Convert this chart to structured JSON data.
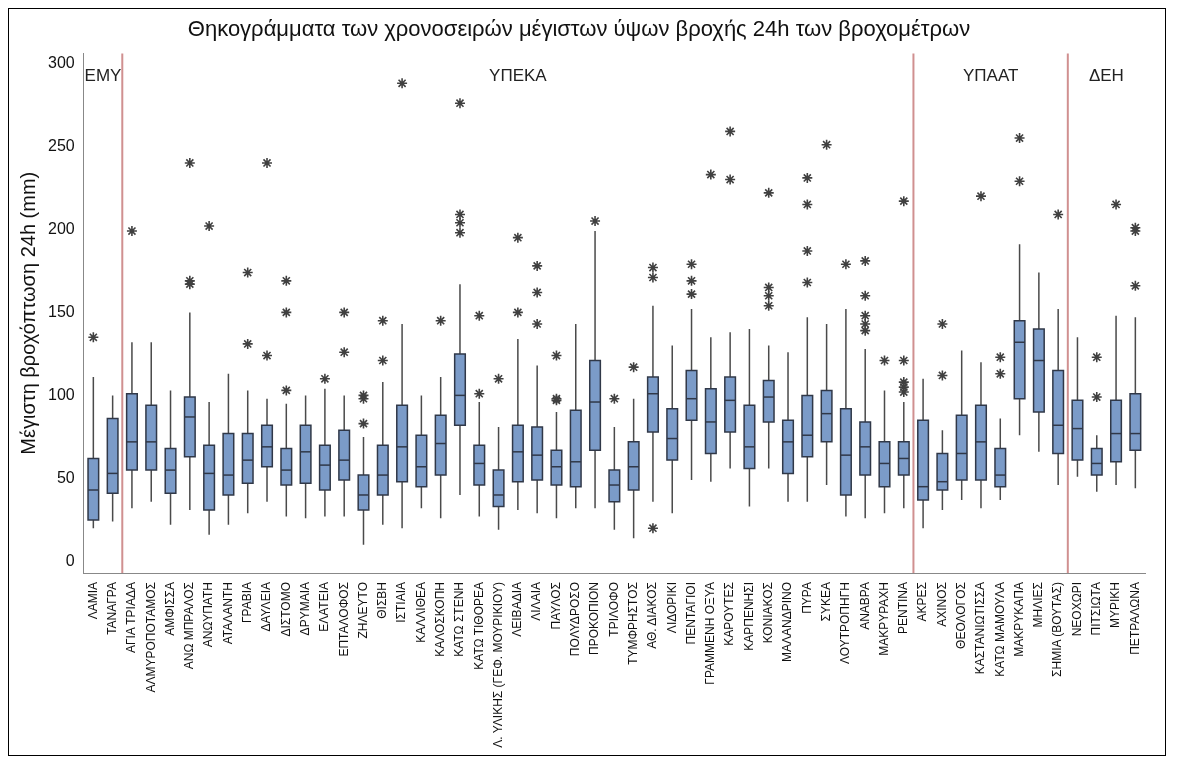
{
  "chart_data": {
    "type": "box",
    "title": "Θηκογράμματα των χρονοσειρών μέγιστων ύψων βροχής 24h των βροχομέτρων",
    "ylabel": "Μέγιστη βροχόπτωση 24h (mm)",
    "categories": [
      "ΛΑΜΙΑ",
      "ΤΑΝΑΓΡΑ",
      "ΑΓΙΑ ΤΡΙΑΔΑ",
      "ΑΛΜΥΡΟΠΟΤΑΜΟΣ",
      "ΑΜΦΙΣΣΑ",
      "ΑΝΩ ΜΠΡΑΛΟΣ",
      "ΑΝΩΥΠΑΤΗ",
      "ΑΤΑΛΑΝΤΗ",
      "ΓΡΑΒΙΑ",
      "ΔΑΥΛΕΙΑ",
      "ΔΙΣΤΟΜΟ",
      "ΔΡΥΜΑΙΑ",
      "ΕΛΑΤΕΙΑ",
      "ΕΠΤΑΛΟΦΟΣ",
      "ΖΗΛΕΥΤΟ",
      "ΘΙΣΒΗ",
      "ΙΣΤΙΑΙΑ",
      "ΚΑΛΛΙΘΕΑ",
      "ΚΑΛΟΣΚΟΠΗ",
      "ΚΑΤΩ ΣΤΕΝΗ",
      "ΚΑΤΩ ΤΙΘΟΡΕΑ",
      "Λ. ΥΛΙΚΗΣ (ΓΕΦ. ΜΟΥΡΙΚΙΟΥ)",
      "ΛΕΙΒΑΔΙΑ",
      "ΛΙΛΑΙΑ",
      "ΠΑΥΛΟΣ",
      "ΠΟΛΥΔΡΟΣΟ",
      "ΠΡΟΚΟΠΙΟΝ",
      "ΤΡΙΛΟΦΟ",
      "ΤΥΜΦΡΗΣΤΟΣ",
      "ΑΘ. ΔΙΑΚΟΣ",
      "ΛΙΔΟΡΙΚΙ",
      "ΠΕΝΤΑΓΙΟΙ",
      "ΓΡΑΜΜΕΝΗ ΟΞΥΑ",
      "ΚΑΡΟΥΤΕΣ",
      "ΚΑΡΠΕΝΗΣΙ",
      "ΚΟΝΙΑΚΟΣ",
      "ΜΑΛΑΝΔΡΙΝΟ",
      "ΠΥΡΑ",
      "ΣΥΚΕΑ",
      "ΛΟΥΤΡΟΠΗΓΗ",
      "ΑΝΑΒΡΑ",
      "ΜΑΚΡΥΡΑΧΗ",
      "ΡΕΝΤΙΝΑ",
      "ΑΚΡΕΣ",
      "ΑΧΙΝΟΣ",
      "ΘΕΟΛΟΓΟΣ",
      "ΚΑΣΤΑΝΙΩΤΙΣΣΑ",
      "ΚΑΤΩ ΜΑΜΟΥΛΑ",
      "ΜΑΚΡΥΚΑΠΑ",
      "ΜΗΛΙΕΣ",
      "ΣΗΜΙΑ (ΒΟΥΤΑΣ)",
      "ΝΕΟΧΩΡΙ",
      "ΠΙΤΣΙΩΤΑ",
      "ΜΥΡΙΚΗ",
      "ΠΕΤΡΑΛΩΝΑ"
    ],
    "color": "#7b9bc8",
    "marker": "star",
    "boxes": [
      {
        "low": 20,
        "q1": 25,
        "median": 43,
        "q3": 62,
        "high": 111,
        "outliers": [
          135
        ]
      },
      {
        "low": 24,
        "q1": 41,
        "median": 53,
        "q3": 86,
        "high": 100
      },
      {
        "low": 32,
        "q1": 55,
        "median": 72,
        "q3": 101,
        "high": 132,
        "outliers": [
          199
        ]
      },
      {
        "low": 36,
        "q1": 55,
        "median": 72,
        "q3": 94,
        "high": 132
      },
      {
        "low": 22,
        "q1": 41,
        "median": 55,
        "q3": 68,
        "high": 103
      },
      {
        "low": 31,
        "q1": 63,
        "median": 87,
        "q3": 99,
        "high": 150,
        "outliers": [
          240,
          169,
          167
        ]
      },
      {
        "low": 16,
        "q1": 31,
        "median": 53,
        "q3": 70,
        "high": 96,
        "outliers": [
          202
        ]
      },
      {
        "low": 22,
        "q1": 40,
        "median": 52,
        "q3": 77,
        "high": 113
      },
      {
        "low": 29,
        "q1": 47,
        "median": 61,
        "q3": 77,
        "high": 103,
        "outliers": [
          174,
          131
        ]
      },
      {
        "low": 36,
        "q1": 57,
        "median": 69,
        "q3": 82,
        "high": 98,
        "outliers": [
          240,
          124
        ]
      },
      {
        "low": 27,
        "q1": 46,
        "median": 55,
        "q3": 68,
        "high": 95,
        "outliers": [
          169,
          150,
          103
        ]
      },
      {
        "low": 26,
        "q1": 47,
        "median": 66,
        "q3": 82,
        "high": 100
      },
      {
        "low": 27,
        "q1": 43,
        "median": 58,
        "q3": 70,
        "high": 104,
        "outliers": [
          110
        ]
      },
      {
        "low": 27,
        "q1": 49,
        "median": 61,
        "q3": 79,
        "high": 100,
        "outliers": [
          150,
          126
        ]
      },
      {
        "low": 10,
        "q1": 31,
        "median": 40,
        "q3": 52,
        "high": 75,
        "outliers": [
          100,
          98,
          83
        ]
      },
      {
        "low": 22,
        "q1": 40,
        "median": 52,
        "q3": 70,
        "high": 108,
        "outliers": [
          145,
          121
        ]
      },
      {
        "low": 20,
        "q1": 48,
        "median": 69,
        "q3": 94,
        "high": 143,
        "outliers": [
          288
        ]
      },
      {
        "low": 32,
        "q1": 45,
        "median": 57,
        "q3": 76,
        "high": 100
      },
      {
        "low": 26,
        "q1": 52,
        "median": 71,
        "q3": 88,
        "high": 111,
        "outliers": [
          145
        ]
      },
      {
        "low": 40,
        "q1": 82,
        "median": 100,
        "q3": 125,
        "high": 167,
        "outliers": [
          276,
          209,
          204,
          198
        ]
      },
      {
        "low": 27,
        "q1": 46,
        "median": 59,
        "q3": 70,
        "high": 96,
        "outliers": [
          148,
          101
        ]
      },
      {
        "low": 19,
        "q1": 33,
        "median": 40,
        "q3": 55,
        "high": 81,
        "outliers": [
          110
        ]
      },
      {
        "low": 31,
        "q1": 48,
        "median": 66,
        "q3": 82,
        "high": 134,
        "outliers": [
          195,
          150
        ]
      },
      {
        "low": 29,
        "q1": 49,
        "median": 64,
        "q3": 81,
        "high": 118,
        "outliers": [
          178,
          162,
          143
        ]
      },
      {
        "low": 26,
        "q1": 46,
        "median": 57,
        "q3": 67,
        "high": 90,
        "outliers": [
          124,
          98,
          97
        ]
      },
      {
        "low": 32,
        "q1": 45,
        "median": 60,
        "q3": 91,
        "high": 143
      },
      {
        "low": 32,
        "q1": 67,
        "median": 96,
        "q3": 121,
        "high": 199,
        "outliers": [
          205
        ]
      },
      {
        "low": 19,
        "q1": 36,
        "median": 46,
        "q3": 55,
        "high": 81,
        "outliers": [
          98
        ]
      },
      {
        "low": 14,
        "q1": 43,
        "median": 57,
        "q3": 72,
        "high": 98,
        "outliers": [
          117
        ]
      },
      {
        "low": 36,
        "q1": 78,
        "median": 101,
        "q3": 111,
        "high": 154,
        "outliers": [
          177,
          171,
          20
        ]
      },
      {
        "low": 29,
        "q1": 61,
        "median": 74,
        "q3": 92,
        "high": 130
      },
      {
        "low": 49,
        "q1": 85,
        "median": 98,
        "q3": 115,
        "high": 152,
        "outliers": [
          179,
          169,
          161
        ]
      },
      {
        "low": 48,
        "q1": 65,
        "median": 84,
        "q3": 104,
        "high": 135,
        "outliers": [
          233
        ]
      },
      {
        "low": 56,
        "q1": 78,
        "median": 97,
        "q3": 111,
        "high": 138,
        "outliers": [
          259,
          230
        ]
      },
      {
        "low": 33,
        "q1": 56,
        "median": 69,
        "q3": 94,
        "high": 140
      },
      {
        "low": 56,
        "q1": 84,
        "median": 99,
        "q3": 109,
        "high": 130,
        "outliers": [
          222,
          165,
          160,
          154
        ]
      },
      {
        "low": 36,
        "q1": 53,
        "median": 72,
        "q3": 85,
        "high": 126
      },
      {
        "low": 36,
        "q1": 63,
        "median": 76,
        "q3": 100,
        "high": 147,
        "outliers": [
          231,
          215,
          187,
          168
        ]
      },
      {
        "low": 46,
        "q1": 72,
        "median": 89,
        "q3": 103,
        "high": 143,
        "outliers": [
          251
        ]
      },
      {
        "low": 27,
        "q1": 40,
        "median": 64,
        "q3": 92,
        "high": 152,
        "outliers": [
          179
        ]
      },
      {
        "low": 26,
        "q1": 52,
        "median": 69,
        "q3": 84,
        "high": 128,
        "outliers": [
          181,
          160,
          148,
          143,
          139
        ]
      },
      {
        "low": 29,
        "q1": 45,
        "median": 59,
        "q3": 72,
        "high": 103,
        "outliers": [
          121
        ]
      },
      {
        "low": 32,
        "q1": 52,
        "median": 62,
        "q3": 72,
        "high": 96,
        "outliers": [
          217,
          121,
          108,
          105,
          102
        ]
      },
      {
        "low": 20,
        "q1": 37,
        "median": 45,
        "q3": 85,
        "high": 110
      },
      {
        "low": 31,
        "q1": 43,
        "median": 48,
        "q3": 65,
        "high": 79,
        "outliers": [
          143,
          112
        ]
      },
      {
        "low": 37,
        "q1": 49,
        "median": 65,
        "q3": 88,
        "high": 127
      },
      {
        "low": 32,
        "q1": 49,
        "median": 72,
        "q3": 94,
        "high": 120,
        "outliers": [
          220
        ]
      },
      {
        "low": 37,
        "q1": 45,
        "median": 52,
        "q3": 68,
        "high": 86,
        "outliers": [
          123,
          113
        ]
      },
      {
        "low": 76,
        "q1": 98,
        "median": 132,
        "q3": 145,
        "high": 191,
        "outliers": [
          255,
          229
        ]
      },
      {
        "low": 66,
        "q1": 90,
        "median": 121,
        "q3": 140,
        "high": 174
      },
      {
        "low": 46,
        "q1": 65,
        "median": 82,
        "q3": 115,
        "high": 152,
        "outliers": [
          209
        ]
      },
      {
        "low": 51,
        "q1": 61,
        "median": 80,
        "q3": 97,
        "high": 135
      },
      {
        "low": 42,
        "q1": 52,
        "median": 59,
        "q3": 68,
        "high": 76,
        "outliers": [
          123,
          99
        ]
      },
      {
        "low": 46,
        "q1": 60,
        "median": 77,
        "q3": 97,
        "high": 148,
        "outliers": [
          215
        ]
      },
      {
        "low": 44,
        "q1": 67,
        "median": 77,
        "q3": 101,
        "high": 147,
        "outliers": [
          201,
          199,
          166
        ]
      }
    ],
    "ylim": [
      -7,
      306
    ],
    "yticks": [
      0,
      50,
      100,
      150,
      200,
      250,
      300
    ],
    "annotations": [
      "ΕΜΥ",
      "ΥΠΕΚΑ",
      "ΥΠΑΑΤ",
      "ΔΕΗ"
    ]
  }
}
